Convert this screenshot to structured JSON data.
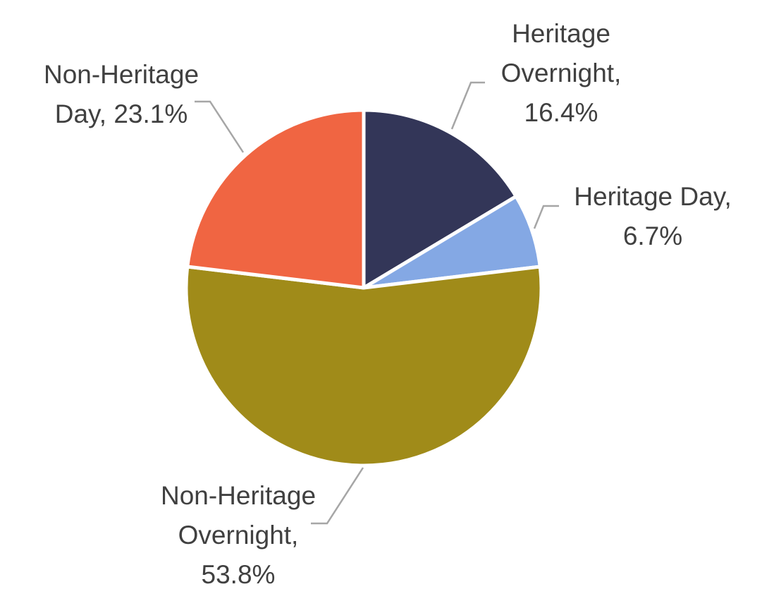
{
  "chart_data": {
    "type": "pie",
    "start_angle_deg": 0,
    "direction": "clockwise",
    "slices": [
      {
        "label": "Heritage Overnight",
        "value": 16.4,
        "display": "16.4%",
        "color": "#333658"
      },
      {
        "label": "Heritage Day",
        "value": 6.7,
        "display": "6.7%",
        "color": "#84a8e4"
      },
      {
        "label": "Non-Heritage Overnight",
        "value": 53.8,
        "display": "53.8%",
        "color": "#a08b19"
      },
      {
        "label": "Non-Heritage Day",
        "value": 23.1,
        "display": "23.1%",
        "color": "#f06542"
      }
    ],
    "data_labels": [
      {
        "lines": [
          "Heritage",
          "Overnight,",
          "16.4%"
        ]
      },
      {
        "lines": [
          "Heritage Day,",
          "6.7%"
        ]
      },
      {
        "lines": [
          "Non-Heritage",
          "Overnight,",
          "53.8%"
        ]
      },
      {
        "lines": [
          "Non-Heritage",
          "Day, 23.1%"
        ]
      }
    ],
    "legend": "none"
  }
}
